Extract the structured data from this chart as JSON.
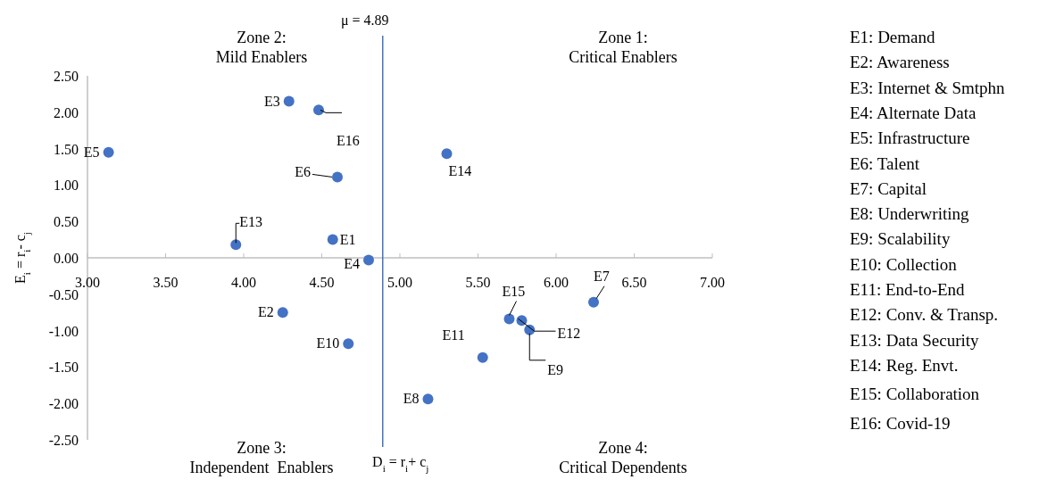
{
  "chart_data": {
    "type": "scatter",
    "xlabel": "D$_{i}$ = r$_{i}$+ c$_{j}$",
    "ylabel": "E$_{i}$ = r$_{i}$- c$_{j}$",
    "x": [
      4.57,
      4.25,
      4.29,
      4.8,
      3.135,
      4.6,
      6.24,
      5.18,
      5.83,
      4.67,
      5.53,
      5.78,
      3.95,
      5.3,
      5.7,
      4.48
    ],
    "series": [
      {
        "color": "#4472c4",
        "values": [
          0.25,
          -0.75,
          2.15,
          -0.03,
          1.45,
          1.11,
          -0.61,
          -1.94,
          -0.99,
          -1.18,
          -1.37,
          -0.86,
          0.18,
          1.43,
          -0.84,
          2.03
        ],
        "value_labels": [
          "E1",
          "E2",
          "E3",
          "E4",
          "E5",
          "E6",
          "E7",
          "E8",
          "E9",
          "E10",
          "E11",
          "E12",
          "E13",
          "E14",
          "E15",
          "E16"
        ]
      }
    ],
    "xlim": [
      3,
      7
    ],
    "xticks": [
      {
        "value": 3,
        "label": "3.00"
      },
      {
        "value": 3.5,
        "label": "3.50"
      },
      {
        "value": 4,
        "label": "4.00"
      },
      {
        "value": 4.5,
        "label": "4.50"
      },
      {
        "value": 5,
        "label": "5.00"
      },
      {
        "value": 5.5,
        "label": "5.50"
      },
      {
        "value": 6,
        "label": "6.00"
      },
      {
        "value": 6.5,
        "label": "6.50"
      },
      {
        "value": 7,
        "label": "7.00"
      }
    ],
    "ylim": [
      -2.5,
      2.5
    ],
    "yticks": [
      {
        "value": -2.5,
        "label": "-2.50"
      },
      {
        "value": -2,
        "label": "-2.00"
      },
      {
        "value": -1.5,
        "label": "-1.50"
      },
      {
        "value": -1,
        "label": "-1.00"
      },
      {
        "value": -0.5,
        "label": "-0.50"
      },
      {
        "value": 0,
        "label": "0.00"
      },
      {
        "value": 0.5,
        "label": "0.50"
      },
      {
        "value": 1,
        "label": "1.00"
      },
      {
        "value": 1.5,
        "label": "1.50"
      },
      {
        "value": 2,
        "label": "2.00"
      },
      {
        "value": 2.5,
        "label": "2.50"
      }
    ],
    "ref_lines": [
      {
        "axis": "x",
        "value": 4.89,
        "label": "μ = 4.89",
        "color": "#4472c4"
      }
    ],
    "marker": "circle",
    "annotations": [
      "Zone 2:\nMild Enablers",
      "Zone 1:\nCritical Enablers",
      "Zone 3:\nIndependent  Enablers",
      "Zone 4:\nCritical Dependents",
      "E1: Demand",
      "E2: Awareness",
      "E3: Internet & Smtphn",
      "E4: Alternate Data",
      "E5: Infrastructure",
      "E6: Talent",
      "E7: Capital",
      "E8: Underwriting",
      "E9: Scalability",
      "E10: Collection",
      "E11: End-to-End",
      "E12: Conv. & Transp.",
      "E13: Data Security",
      "E14: Reg. Envt.",
      "E15: Collaboration",
      "E16: Covid-19"
    ]
  }
}
